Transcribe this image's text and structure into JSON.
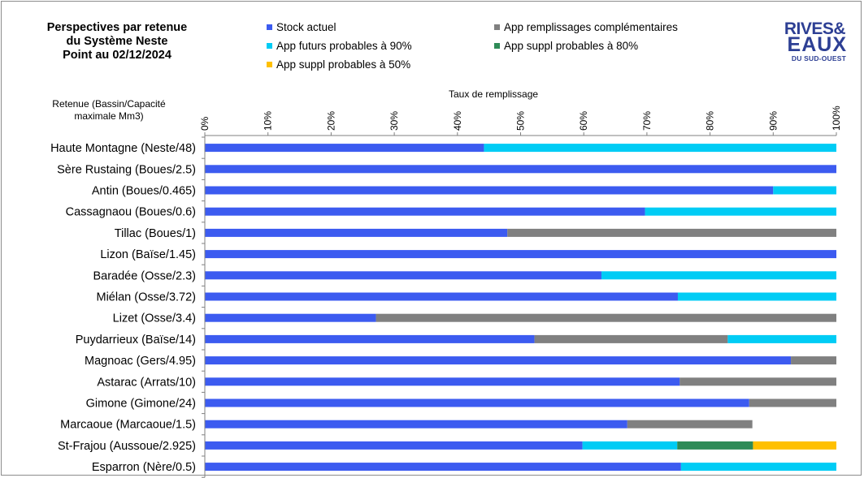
{
  "title": {
    "line1": "Perspectives par retenue",
    "line2": "du Système Neste",
    "line3": "Point au 02/12/2024"
  },
  "logo": {
    "line1": "RIVES&",
    "line2": "EAUX",
    "line3": "DU SUD-OUEST"
  },
  "colors": {
    "stock": "#3c5bf0",
    "futurs90": "#00ccf5",
    "remplissages": "#808080",
    "suppl80": "#2e8b57",
    "suppl50": "#ffc000",
    "logo": "#2d3f94"
  },
  "chart_data": {
    "type": "bar",
    "orientation": "horizontal",
    "stacked": true,
    "xlabel": "Taux de remplissage",
    "ylabel": "Retenue  (Bassin/Capacité\nmaximale  Mm3)",
    "xlim": [
      0,
      100
    ],
    "xticks": [
      "0%",
      "10%",
      "20%",
      "30%",
      "40%",
      "50%",
      "60%",
      "70%",
      "80%",
      "90%",
      "100%"
    ],
    "grid": false,
    "legend_position": "top",
    "categories": [
      "Haute Montagne (Neste/48)",
      "Sère Rustaing (Boues/2.5)",
      "Antin (Boues/0.465)",
      "Cassagnaou (Boues/0.6)",
      "Tillac (Boues/1)",
      "Lizon (Baïse/1.45)",
      "Baradée (Osse/2.3)",
      "Miélan (Osse/3.72)",
      "Lizet (Osse/3.4)",
      "Puydarrieux (Baïse/14)",
      "Magnoac (Gers/4.95)",
      "Astarac (Arrats/10)",
      "Gimone (Gimone/24)",
      "Marcaoue (Marcaoue/1.5)",
      "St-Frajou (Aussoue/2.925)",
      "Esparron (Nère/0.5)"
    ],
    "series": [
      {
        "key": "stock",
        "name": "Stock actuel",
        "color": "#3c5bf0",
        "values": [
          44.2,
          100,
          90,
          69.7,
          47.9,
          100,
          62.8,
          74.9,
          27.1,
          52.2,
          92.8,
          75.2,
          86.2,
          66.9,
          59.8,
          75.4
        ]
      },
      {
        "key": "remplissages",
        "name": "App remplissages complémentaires",
        "color": "#808080",
        "values": [
          0,
          0,
          0,
          0,
          52.1,
          0,
          0,
          0,
          72.9,
          30.6,
          7.2,
          24.8,
          13.8,
          19.8,
          0,
          0
        ]
      },
      {
        "key": "futurs90",
        "name": "App futurs probables à  90%",
        "color": "#00ccf5",
        "values": [
          55.8,
          0,
          10,
          30.3,
          0,
          0,
          37.2,
          25.1,
          0,
          17.2,
          0,
          0,
          0,
          0,
          15,
          24.6
        ]
      },
      {
        "key": "suppl80",
        "name": "App suppl probables à  80%",
        "color": "#2e8b57",
        "values": [
          0,
          0,
          0,
          0,
          0,
          0,
          0,
          0,
          0,
          0,
          0,
          0,
          0,
          0,
          12,
          0
        ]
      },
      {
        "key": "suppl50",
        "name": "App suppl probables à  50%",
        "color": "#ffc000",
        "values": [
          0,
          0,
          0,
          0,
          0,
          0,
          0,
          0,
          0,
          0,
          0,
          0,
          0,
          0,
          13.2,
          0
        ]
      }
    ]
  }
}
